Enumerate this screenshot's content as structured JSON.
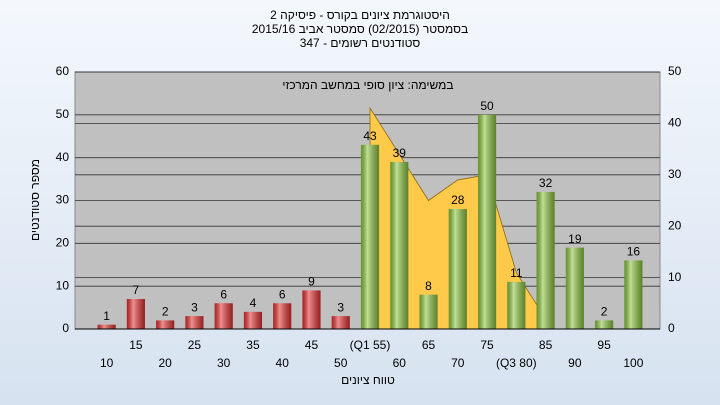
{
  "chart_data": {
    "type": "bar",
    "title": "היסטוגרמת ציונים בקורס - פיסיקה 2",
    "subtitle": "בסמסטר (02/2015) סמסטר אביב 2015/16",
    "subtitle2": "סטודנטים רשומים - 347",
    "annotation": "במשימה: ציון סופי במחשב המרכזי",
    "ylabel": "מספר סטודנטים",
    "xlabel": "טווח ציונים",
    "categories": [
      "10",
      "15",
      "20",
      "25",
      "30",
      "35",
      "40",
      "45",
      "50",
      "(Q1 55)",
      "60",
      "65",
      "70",
      "75",
      "(Q3 80)",
      "85",
      "90",
      "95",
      "100"
    ],
    "series": [
      {
        "type": "bar",
        "values": [
          1,
          7,
          2,
          3,
          6,
          4,
          6,
          9,
          3,
          43,
          39,
          8,
          28,
          50,
          11,
          32,
          19,
          2,
          16
        ],
        "colors": [
          "#e53232",
          "#e53232",
          "#e53232",
          "#e53232",
          "#e53232",
          "#e53232",
          "#e53232",
          "#e53232",
          "#e53232",
          "#8cc63f",
          "#8cc63f",
          "#8cc63f",
          "#8cc63f",
          "#8cc63f",
          "#8cc63f",
          "#8cc63f",
          "#8cc63f",
          "#8cc63f",
          "#8cc63f"
        ]
      },
      {
        "type": "area",
        "axis": "y2",
        "color": "#ffc94a",
        "values": [
          null,
          null,
          null,
          null,
          null,
          null,
          null,
          null,
          null,
          43,
          34,
          25,
          29,
          30,
          11,
          2,
          null,
          null,
          null
        ]
      }
    ],
    "ylim": [
      0,
      60
    ],
    "yticks": [
      0,
      10,
      20,
      30,
      40,
      50,
      60
    ],
    "y2lim": [
      0,
      50
    ],
    "y2ticks": [
      0,
      10,
      20,
      30,
      40,
      50
    ],
    "grid": true
  }
}
